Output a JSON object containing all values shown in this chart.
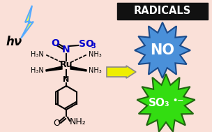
{
  "bg_color": "#fae0d8",
  "title_box_color": "#111111",
  "title_text": "RADICALS",
  "title_text_color": "#ffffff",
  "no_burst_color": "#4a90d9",
  "no_burst_outline": "#1a4a8a",
  "no_text": "NO",
  "so3_burst_color": "#33dd11",
  "so3_burst_outline": "#226611",
  "so3_text": "SO₃",
  "so3_radical": "•−",
  "arrow_color": "#eeee00",
  "arrow_outline": "#888888",
  "lightning_color": "#ffff44",
  "lightning_outline": "#55aaff",
  "hv_text": "hν",
  "n_color": "#0000cc",
  "o_color": "#0000cc",
  "s_color": "#0000cc"
}
